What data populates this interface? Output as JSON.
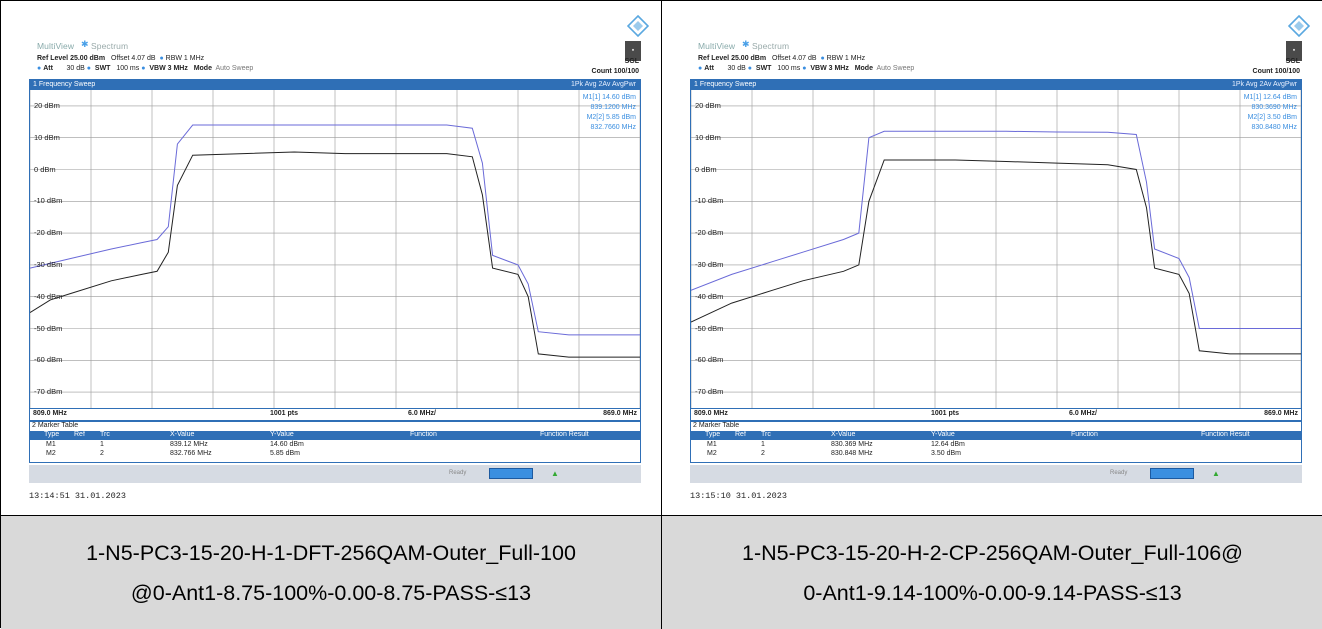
{
  "panels": [
    {
      "tab1": "MultiView",
      "tab2": "Spectrum",
      "ref_level": "Ref Level 25.00 dBm",
      "offset": "Offset 4.07 dB",
      "rbw": "RBW 1 MHz",
      "att": "Att",
      "att_val": "30 dB",
      "swt": "SWT",
      "swt_val": "100 ms",
      "vbw": "VBW 3 MHz",
      "mode": "Mode",
      "mode_val": "Auto Sweep",
      "sgl": "SGL",
      "count": "Count 100/100",
      "sweep_title": "1 Frequency Sweep",
      "avg": "1Pk Avg   2Av AvgPwr",
      "y_labels": [
        "20 dBm",
        "10 dBm",
        "0 dBm",
        "-10 dBm",
        "-20 dBm",
        "-30 dBm",
        "-40 dBm",
        "-50 dBm",
        "-60 dBm",
        "-70 dBm"
      ],
      "m1_line1": "M1[1]      14.60 dBm",
      "m1_line2": "839.1200 MHz",
      "m2_line1": "M2[2]        5.85 dBm",
      "m2_line2": "832.7660 MHz",
      "x_start": "809.0 MHz",
      "pts": "1001 pts",
      "span": "6.0 MHz/",
      "x_end": "869.0 MHz",
      "table_title": "2 Marker Table",
      "headers": [
        "Type",
        "Ref",
        "Trc",
        "X-Value",
        "Y-Value",
        "Function",
        "Function Result"
      ],
      "rows": [
        [
          "M1",
          "",
          "1",
          "839.12 MHz",
          "14.60 dBm",
          "",
          ""
        ],
        [
          "M2",
          "",
          "2",
          "832.766 MHz",
          "5.85 dBm",
          "",
          ""
        ]
      ],
      "ready": "Ready",
      "timestamp": "13:14:51  31.01.2023",
      "chart_data": {
        "type": "line",
        "x_range": [
          809.0,
          869.0
        ],
        "y_range": [
          -75,
          25
        ],
        "series": [
          {
            "x": [
              809,
              813,
              817,
              820,
              821.5,
              822.6,
              823.5,
              825,
              830,
              835,
              840,
              845,
              850,
              852.5,
              853.5,
              854.5,
              857,
              858,
              859,
              862,
              865,
              869
            ],
            "y": [
              -31,
              -28,
              -25,
              -23,
              -22,
              -18,
              8,
              14,
              14,
              14,
              14,
              14,
              14,
              13,
              2,
              -27,
              -30,
              -36,
              -51,
              -52,
              -52,
              -52
            ]
          },
          {
            "x": [
              809,
              811,
              813,
              817,
              820,
              821.5,
              822.6,
              823.5,
              825,
              830,
              835,
              840,
              845,
              850,
              852.5,
              853.5,
              854.5,
              857,
              858,
              859,
              862,
              865,
              869
            ],
            "y": [
              -45,
              -41,
              -39,
              -35,
              -33,
              -32,
              -26,
              -5,
              4.5,
              5,
              5.5,
              5,
              5,
              5,
              4,
              -8,
              -31,
              -33,
              -40,
              -58,
              -59,
              -59,
              -59
            ]
          }
        ]
      },
      "caption_line1": "1-N5-PC3-15-20-H-1-DFT-256QAM-Outer_Full-100",
      "caption_line2": "@0-Ant1-8.75-100%-0.00-8.75-PASS-≤13"
    },
    {
      "tab1": "MultiView",
      "tab2": "Spectrum",
      "ref_level": "Ref Level 25.00 dBm",
      "offset": "Offset 4.07 dB",
      "rbw": "RBW 1 MHz",
      "att": "Att",
      "att_val": "30 dB",
      "swt": "SWT",
      "swt_val": "100 ms",
      "vbw": "VBW 3 MHz",
      "mode": "Mode",
      "mode_val": "Auto Sweep",
      "sgl": "SGL",
      "count": "Count 100/100",
      "sweep_title": "1 Frequency Sweep",
      "avg": "1Pk Avg   2Av AvgPwr",
      "y_labels": [
        "20 dBm",
        "10 dBm",
        "0 dBm",
        "-10 dBm",
        "-20 dBm",
        "-30 dBm",
        "-40 dBm",
        "-50 dBm",
        "-60 dBm",
        "-70 dBm"
      ],
      "m1_line1": "M1[1]      12.64 dBm",
      "m1_line2": "830.3690 MHz",
      "m2_line1": "M2[2]        3.50 dBm",
      "m2_line2": "830.8480 MHz",
      "x_start": "809.0 MHz",
      "pts": "1001 pts",
      "span": "6.0 MHz/",
      "x_end": "869.0 MHz",
      "table_title": "2 Marker Table",
      "headers": [
        "Type",
        "Ref",
        "Trc",
        "X-Value",
        "Y-Value",
        "Function",
        "Function Result"
      ],
      "rows": [
        [
          "M1",
          "",
          "1",
          "830.369 MHz",
          "12.64 dBm",
          "",
          ""
        ],
        [
          "M2",
          "",
          "2",
          "830.848 MHz",
          "3.50 dBm",
          "",
          ""
        ]
      ],
      "ready": "Ready",
      "timestamp": "13:15:10  31.01.2023",
      "chart_data": {
        "type": "line",
        "x_range": [
          809.0,
          869.0
        ],
        "y_range": [
          -75,
          25
        ],
        "series": [
          {
            "x": [
              809,
              813,
              817,
              820,
              824,
              825.5,
              826.5,
              828,
              835,
              840,
              845,
              850,
              852.8,
              853.8,
              854.6,
              857,
              858,
              859,
              862,
              865,
              869
            ],
            "y": [
              -38,
              -33,
              -29,
              -26,
              -22,
              -20,
              10,
              12,
              12,
              12,
              11.8,
              11.7,
              11,
              -4,
              -25,
              -28,
              -34,
              -50,
              -50,
              -50,
              -50
            ]
          },
          {
            "x": [
              809,
              813,
              817,
              820,
              824,
              825.5,
              826.5,
              828,
              835,
              840,
              845,
              850,
              852.8,
              853.8,
              854.6,
              857,
              858,
              859,
              862,
              865,
              869
            ],
            "y": [
              -48,
              -42,
              -38,
              -35,
              -32,
              -30,
              -10,
              3,
              3,
              2.5,
              2,
              1.5,
              0,
              -12,
              -31,
              -33,
              -39,
              -57,
              -58,
              -58,
              -58
            ]
          }
        ]
      },
      "caption_line1": "1-N5-PC3-15-20-H-2-CP-256QAM-Outer_Full-106@",
      "caption_line2": "0-Ant1-9.14-100%-0.00-9.14-PASS-≤13"
    }
  ],
  "colors": {
    "trace1": "#6a6ad8",
    "trace2": "#222222",
    "accent": "#2f6fb6",
    "marker": "#3a8ee0"
  }
}
